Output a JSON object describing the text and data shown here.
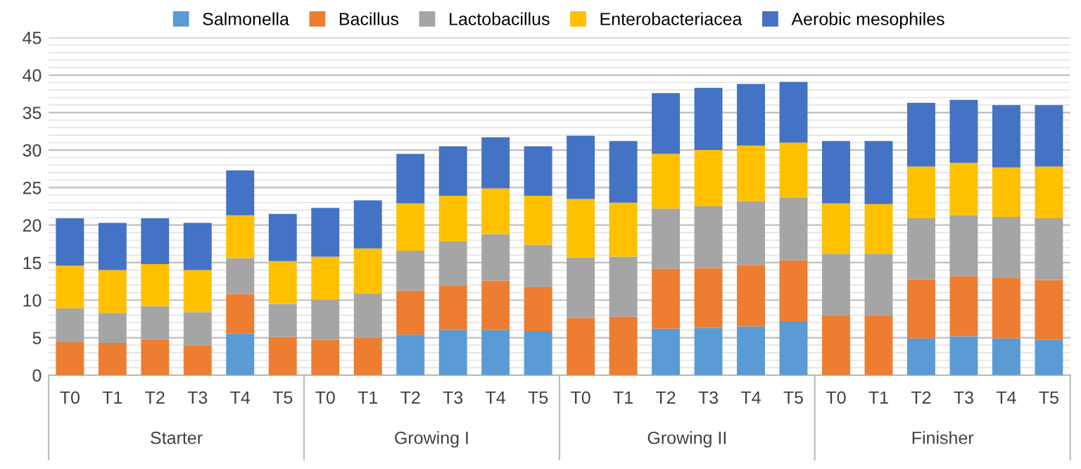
{
  "chart_data": {
    "type": "bar",
    "stacked": true,
    "categories": [
      "T0",
      "T1",
      "T2",
      "T3",
      "T4",
      "T5",
      "T0",
      "T1",
      "T2",
      "T3",
      "T4",
      "T5",
      "T0",
      "T1",
      "T2",
      "T3",
      "T4",
      "T5",
      "T0",
      "T1",
      "T2",
      "T3",
      "T4",
      "T5"
    ],
    "annotations": [
      "Starter",
      "Growing I",
      "Growing II",
      "Finisher"
    ],
    "series": [
      {
        "name": "Salmonella",
        "color": "#5b9bd5",
        "values": [
          0,
          0,
          0,
          0,
          5.6,
          0,
          0,
          0,
          5.4,
          6.0,
          6.0,
          5.9,
          0,
          0,
          6.2,
          6.3,
          6.5,
          7.2,
          0,
          0,
          4.9,
          5.2,
          4.9,
          4.7
        ]
      },
      {
        "name": "Bacillus",
        "color": "#ed7d31",
        "values": [
          4.4,
          4.3,
          4.8,
          4.0,
          5.2,
          5.1,
          4.7,
          5.0,
          5.9,
          5.9,
          6.6,
          5.8,
          7.6,
          7.8,
          8.0,
          8.0,
          8.2,
          8.1,
          8.0,
          8.0,
          7.9,
          8.0,
          8.1,
          8.0
        ]
      },
      {
        "name": "Lactobacillus",
        "color": "#a5a5a5",
        "values": [
          4.5,
          4.0,
          4.4,
          4.4,
          4.8,
          4.4,
          5.4,
          5.9,
          5.3,
          5.9,
          6.2,
          5.7,
          8.1,
          8.0,
          8.0,
          8.2,
          8.5,
          8.4,
          8.2,
          8.2,
          8.1,
          8.1,
          8.1,
          8.2
        ]
      },
      {
        "name": "Enterobacteriacea",
        "color": "#ffc000",
        "values": [
          5.7,
          5.7,
          5.6,
          5.6,
          5.7,
          5.7,
          5.7,
          6.0,
          6.3,
          6.1,
          6.1,
          6.5,
          7.8,
          7.2,
          7.3,
          7.5,
          7.4,
          7.3,
          6.7,
          6.6,
          6.9,
          7.0,
          6.6,
          6.9
        ]
      },
      {
        "name": "Aerobic mesophiles",
        "color": "#4472c4",
        "values": [
          6.3,
          6.3,
          6.1,
          6.3,
          6.0,
          6.3,
          6.5,
          6.4,
          6.6,
          6.6,
          6.8,
          6.6,
          8.4,
          8.2,
          8.1,
          8.3,
          8.2,
          8.1,
          8.3,
          8.4,
          8.5,
          8.4,
          8.3,
          8.2
        ]
      }
    ],
    "ylim": [
      0,
      45
    ],
    "yticks": [
      0,
      5,
      10,
      15,
      20,
      25,
      30,
      35,
      40,
      45
    ],
    "grid": "y",
    "legend": "top"
  }
}
